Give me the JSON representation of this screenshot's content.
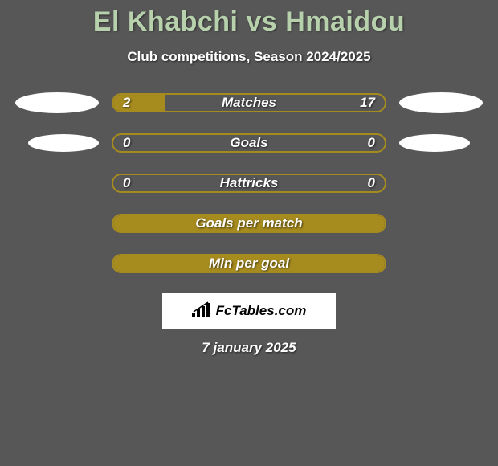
{
  "title": "El Khabchi vs Hmaidou",
  "subtitle": "Club competitions, Season 2024/2025",
  "colors": {
    "background": "#575757",
    "title": "#b8d1ad",
    "bar_border": "#a68b1f",
    "bar_fill": "#a68b1f",
    "ellipse": "#ffffff",
    "text": "#ffffff",
    "watermark_bg": "#ffffff",
    "watermark_text": "#000000"
  },
  "rows": [
    {
      "label": "Matches",
      "left_value": "2",
      "right_value": "17",
      "left_fill_pct": 19,
      "right_fill_pct": 0,
      "has_ellipse": true,
      "ellipse_size": "normal"
    },
    {
      "label": "Goals",
      "left_value": "0",
      "right_value": "0",
      "left_fill_pct": 0,
      "right_fill_pct": 0,
      "has_ellipse": true,
      "ellipse_size": "small"
    },
    {
      "label": "Hattricks",
      "left_value": "0",
      "right_value": "0",
      "left_fill_pct": 0,
      "right_fill_pct": 0,
      "has_ellipse": false
    },
    {
      "label": "Goals per match",
      "left_value": "",
      "right_value": "",
      "left_fill_pct": 100,
      "right_fill_pct": 0,
      "has_ellipse": false,
      "full_fill": true
    },
    {
      "label": "Min per goal",
      "left_value": "",
      "right_value": "",
      "left_fill_pct": 100,
      "right_fill_pct": 0,
      "has_ellipse": false,
      "full_fill": true
    }
  ],
  "watermark": {
    "text": "FcTables.com",
    "icon": "bars-icon"
  },
  "date": "7 january 2025"
}
